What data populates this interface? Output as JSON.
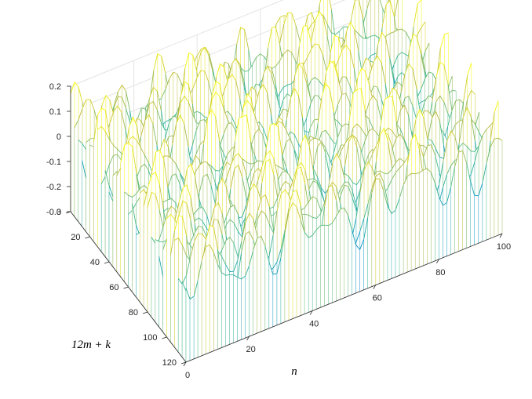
{
  "chart_data": {
    "type": "surface",
    "title": "",
    "xlabel": "n",
    "ylabel": "12m + k",
    "zlabel": "",
    "x_range": [
      0,
      100
    ],
    "y_range": [
      0,
      120
    ],
    "z_range": [
      -0.3,
      0.2
    ],
    "x_ticks": [
      "0",
      "20",
      "40",
      "60",
      "80",
      "100"
    ],
    "y_ticks": [
      "0",
      "20",
      "40",
      "60",
      "80",
      "100",
      "120"
    ],
    "z_ticks": [
      "0.2",
      "0.1",
      "0",
      "-0.1",
      "-0.2",
      "-0.3"
    ],
    "mesh": "waterfall",
    "colormap": "parula",
    "grid": true
  }
}
